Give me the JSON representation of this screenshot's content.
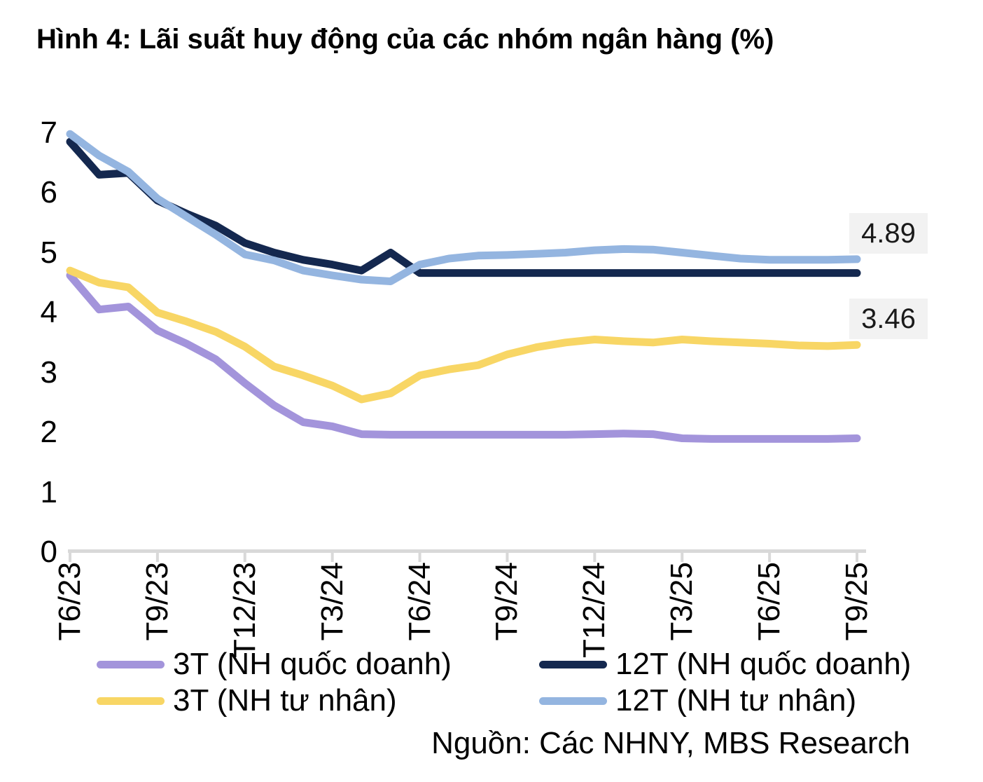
{
  "title": "Hình 4: Lãi suất huy động của các nhóm ngân hàng (%)",
  "source": "Nguồn: Các NHNY, MBS Research",
  "colors": {
    "axis": "#d9d9d9",
    "annotation_bg": "#f2f2f2",
    "text": "#000000",
    "series_3t_state": "#a394db",
    "series_12t_state": "#14284f",
    "series_3t_private": "#f8d665",
    "series_12t_private": "#94b5e0"
  },
  "legend": {
    "items": [
      {
        "label": "3T (NH quốc doanh)",
        "color": "#a394db"
      },
      {
        "label": "12T (NH quốc doanh)",
        "color": "#14284f"
      },
      {
        "label": "3T (NH tư nhân)",
        "color": "#f8d665"
      },
      {
        "label": "12T (NH tư nhân)",
        "color": "#94b5e0"
      }
    ]
  },
  "chart_data": {
    "type": "line",
    "title": "Hình 4: Lãi suất huy động của các nhóm ngân hàng (%)",
    "xlabel": "",
    "ylabel": "",
    "ylim": [
      0,
      7
    ],
    "y_ticks": [
      0,
      1,
      2,
      3,
      4,
      5,
      6,
      7
    ],
    "grid": false,
    "legend_position": "bottom",
    "n_points": 28,
    "tick_every": 3,
    "x_tick_labels": [
      "T6/23",
      "T9/23",
      "T12/23",
      "T3/24",
      "T6/24",
      "T9/24",
      "T12/24",
      "T3/25",
      "T6/25",
      "T9/25"
    ],
    "series": [
      {
        "name": "3T (NH quốc doanh)",
        "color": "#a394db",
        "values": [
          4.62,
          4.05,
          4.1,
          3.7,
          3.48,
          3.22,
          2.82,
          2.45,
          2.17,
          2.1,
          1.97,
          1.96,
          1.96,
          1.96,
          1.96,
          1.96,
          1.96,
          1.96,
          1.97,
          1.98,
          1.97,
          1.9,
          1.89,
          1.89,
          1.89,
          1.89,
          1.89,
          1.9
        ]
      },
      {
        "name": "12T (NH quốc doanh)",
        "color": "#14284f",
        "values": [
          6.85,
          6.3,
          6.33,
          5.87,
          5.65,
          5.45,
          5.16,
          5.0,
          4.88,
          4.8,
          4.7,
          5.0,
          4.66,
          4.66,
          4.66,
          4.66,
          4.66,
          4.66,
          4.66,
          4.66,
          4.66,
          4.66,
          4.66,
          4.66,
          4.66,
          4.66,
          4.66,
          4.66
        ]
      },
      {
        "name": "3T (NH tư nhân)",
        "color": "#f8d665",
        "values": [
          4.7,
          4.5,
          4.42,
          4.0,
          3.85,
          3.68,
          3.43,
          3.1,
          2.95,
          2.78,
          2.55,
          2.65,
          2.95,
          3.05,
          3.12,
          3.3,
          3.42,
          3.5,
          3.55,
          3.52,
          3.5,
          3.55,
          3.52,
          3.5,
          3.48,
          3.45,
          3.44,
          3.46
        ]
      },
      {
        "name": "12T (NH tư nhân)",
        "color": "#94b5e0",
        "values": [
          6.98,
          6.62,
          6.35,
          5.9,
          5.6,
          5.3,
          4.97,
          4.87,
          4.7,
          4.62,
          4.55,
          4.52,
          4.8,
          4.9,
          4.95,
          4.96,
          4.98,
          5.0,
          5.04,
          5.06,
          5.05,
          5.0,
          4.95,
          4.9,
          4.88,
          4.88,
          4.88,
          4.89
        ]
      }
    ],
    "annotations": [
      {
        "text": "4.89",
        "series": "12T (NH tư nhân)",
        "value": 4.89
      },
      {
        "text": "3.46",
        "series": "3T (NH tư nhân)",
        "value": 3.46
      }
    ]
  }
}
